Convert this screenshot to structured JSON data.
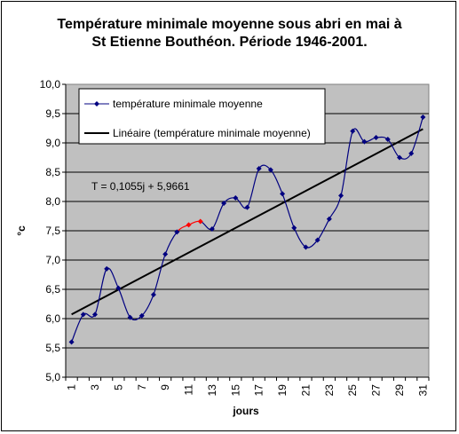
{
  "title_line1": "Température minimale moyenne sous abri en mai à",
  "title_line2": "St Etienne Bouthéon. Période 1946-2001.",
  "chart_data": {
    "type": "line",
    "title": "Température minimale moyenne sous abri en mai à St Etienne Bouthéon. Période 1946-2001.",
    "xlabel": "jours",
    "ylabel": "°c",
    "ylim": [
      5.0,
      10.0
    ],
    "ytick_step": 0.5,
    "ytick_labels": [
      "5,0",
      "5,5",
      "6,0",
      "6,5",
      "7,0",
      "7,5",
      "8,0",
      "8,5",
      "9,0",
      "9,5",
      "10,0"
    ],
    "x": [
      1,
      2,
      3,
      4,
      5,
      6,
      7,
      8,
      9,
      10,
      11,
      12,
      13,
      14,
      15,
      16,
      17,
      18,
      19,
      20,
      21,
      22,
      23,
      24,
      25,
      26,
      27,
      28,
      29,
      30,
      31
    ],
    "grid": "horizontal",
    "plot_background": "#c0c0c0",
    "legend_position": "top-left",
    "series": [
      {
        "name": "température minimale moyenne",
        "color": "#000080",
        "highlight_color": "#ff0000",
        "highlight_x": [
          11,
          12
        ],
        "values": [
          5.6,
          6.07,
          6.07,
          6.85,
          6.52,
          6.02,
          6.05,
          6.41,
          7.1,
          7.48,
          7.6,
          7.66,
          7.53,
          7.97,
          8.06,
          7.9,
          8.56,
          8.54,
          8.13,
          7.55,
          7.22,
          7.34,
          7.7,
          8.1,
          9.2,
          9.02,
          9.09,
          9.06,
          8.75,
          8.82,
          9.44
        ]
      },
      {
        "name": "Linéaire (température minimale moyenne)",
        "color": "#000000",
        "type": "trendline",
        "slope": 0.1055,
        "intercept": 5.9661
      }
    ],
    "annotation": "T = 0,1055j + 5,9661"
  }
}
